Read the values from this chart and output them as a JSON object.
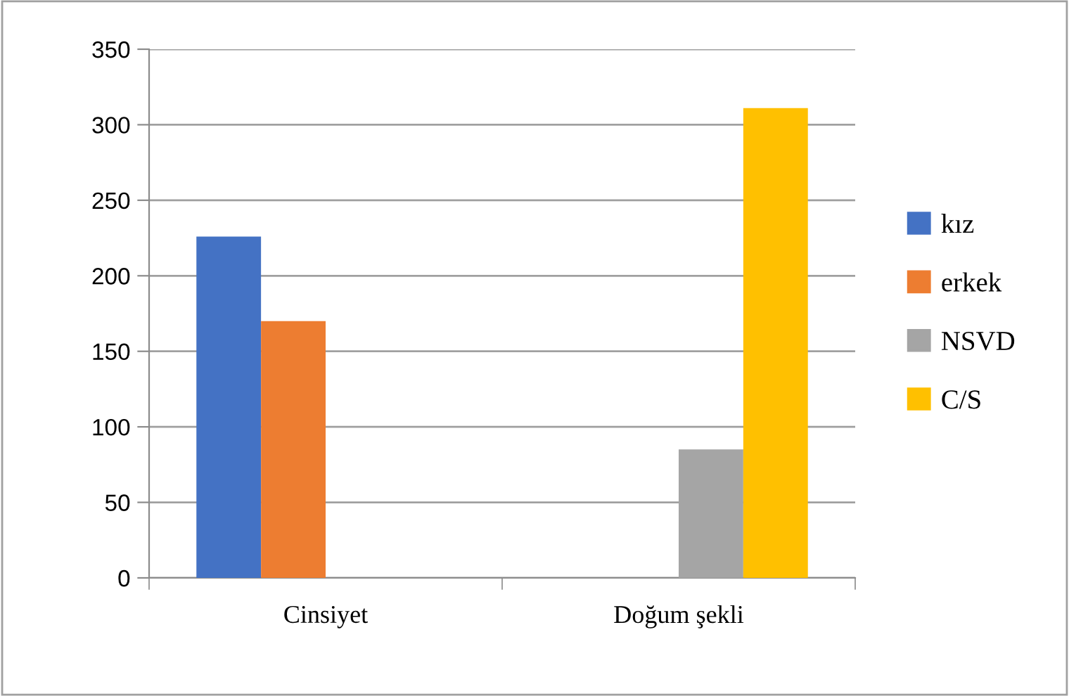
{
  "chart_data": {
    "type": "bar",
    "categories": [
      "Cinsiyet",
      "Doğum şekli"
    ],
    "series": [
      {
        "name": "kız",
        "color": "#4472c4",
        "values": [
          226,
          null
        ]
      },
      {
        "name": "erkek",
        "color": "#ed7d31",
        "values": [
          170,
          null
        ]
      },
      {
        "name": "NSVD",
        "color": "#a5a5a5",
        "values": [
          null,
          85
        ]
      },
      {
        "name": "C/S",
        "color": "#ffc000",
        "values": [
          null,
          311
        ]
      }
    ],
    "ylim": [
      0,
      350
    ],
    "yticks": [
      0,
      50,
      100,
      150,
      200,
      250,
      300,
      350
    ],
    "grid": "y",
    "legend": "right"
  }
}
